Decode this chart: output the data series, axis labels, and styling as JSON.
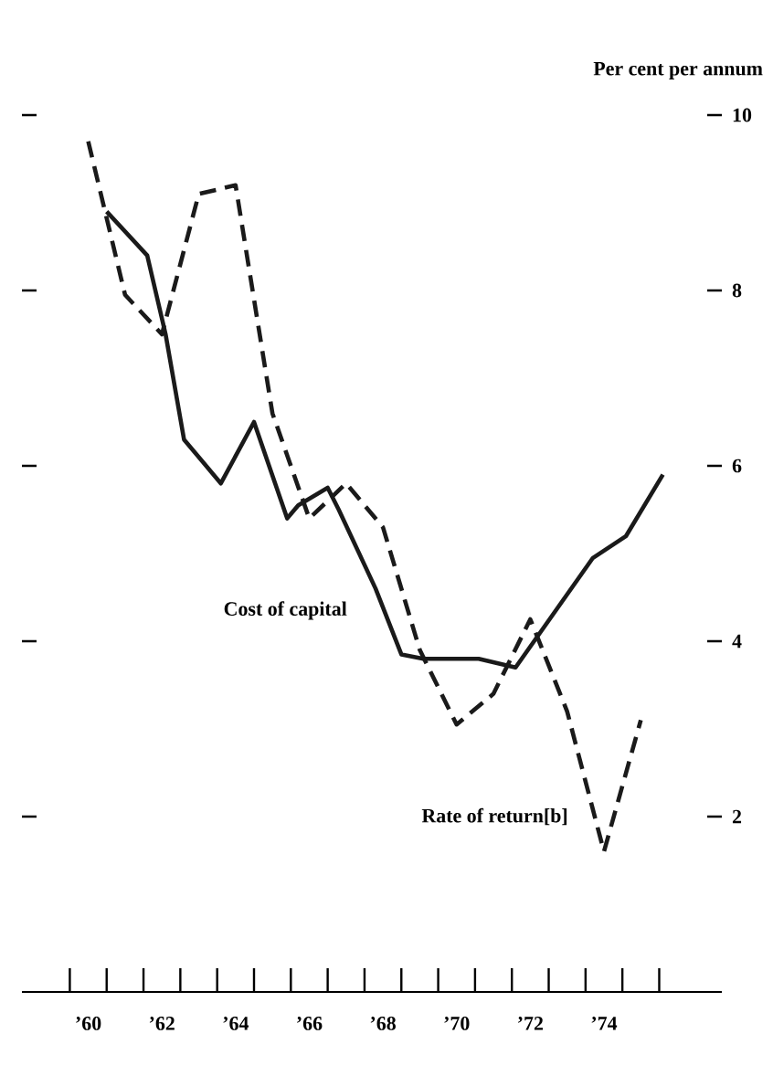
{
  "chart_data": {
    "type": "line",
    "ylabel": "Per cent per annum",
    "xlim": [
      1958.2,
      1977.2
    ],
    "xticks": [
      {
        "value": 1960,
        "label": "’60"
      },
      {
        "value": 1962,
        "label": "’62"
      },
      {
        "value": 1964,
        "label": "’64"
      },
      {
        "value": 1966,
        "label": "’66"
      },
      {
        "value": 1968,
        "label": "’68"
      },
      {
        "value": 1970,
        "label": "’70"
      },
      {
        "value": 1972,
        "label": "’72"
      },
      {
        "value": 1974,
        "label": "’74"
      },
      {
        "value": 1959.5,
        "label": null
      },
      {
        "value": 1960.5,
        "label": null
      },
      {
        "value": 1961.5,
        "label": null
      },
      {
        "value": 1962.5,
        "label": null
      },
      {
        "value": 1963.5,
        "label": null
      },
      {
        "value": 1964.5,
        "label": null
      },
      {
        "value": 1965.5,
        "label": null
      },
      {
        "value": 1966.5,
        "label": null
      },
      {
        "value": 1967.5,
        "label": null
      },
      {
        "value": 1968.5,
        "label": null
      },
      {
        "value": 1969.5,
        "label": null
      },
      {
        "value": 1970.5,
        "label": null
      },
      {
        "value": 1971.5,
        "label": null
      },
      {
        "value": 1972.5,
        "label": null
      },
      {
        "value": 1973.5,
        "label": null
      },
      {
        "value": 1974.5,
        "label": null
      },
      {
        "value": 1975.5,
        "label": null
      }
    ],
    "ylim": [
      0,
      10
    ],
    "yticks": [
      2,
      4,
      6,
      8,
      10
    ],
    "marker": "none",
    "series": [
      {
        "name": "Cost of capital",
        "color": "#1a1a1a",
        "line_style": "solid",
        "x": [
          1960.5,
          1961.6,
          1962.1,
          1962.6,
          1963.6,
          1964.5,
          1965.4,
          1965.7,
          1966.5,
          1966.8,
          1967.8,
          1968.5,
          1969.1,
          1970.6,
          1971.6,
          1973.7,
          1974.6,
          1975.6
        ],
        "values": [
          8.9,
          8.4,
          7.5,
          6.3,
          5.8,
          6.5,
          5.4,
          5.55,
          5.75,
          5.5,
          4.6,
          3.85,
          3.8,
          3.8,
          3.7,
          4.95,
          5.2,
          5.9
        ]
      },
      {
        "name": "Rate of return[b]",
        "color": "#1a1a1a",
        "line_style": "dashed",
        "x": [
          1960,
          1961,
          1962,
          1963,
          1964,
          1965,
          1966,
          1967,
          1968,
          1969,
          1970,
          1971,
          1972,
          1973,
          1974,
          1975
        ],
        "values": [
          9.7,
          7.95,
          7.5,
          9.1,
          9.2,
          6.6,
          5.4,
          5.8,
          5.3,
          3.9,
          3.05,
          3.4,
          4.25,
          3.2,
          1.6,
          3.1
        ]
      }
    ]
  }
}
